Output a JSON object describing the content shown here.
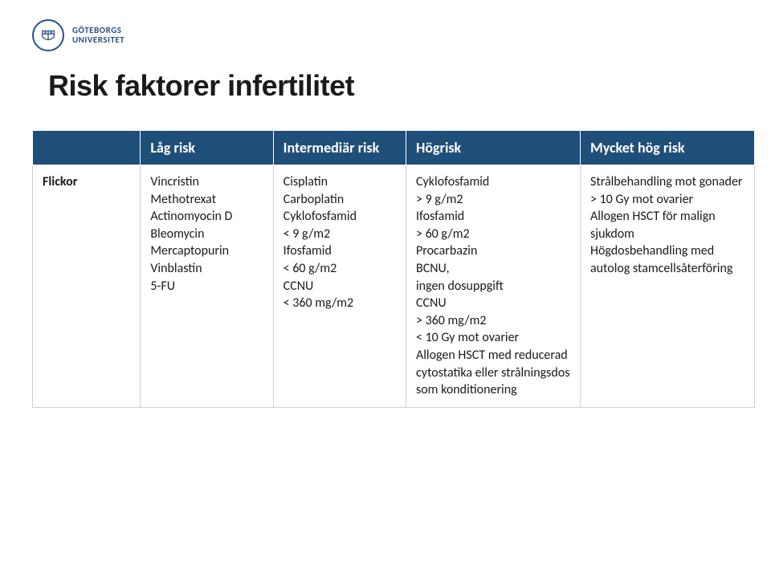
{
  "logo": {
    "line1": "GÖTEBORGS",
    "line2": "UNIVERSITET",
    "stroke": "#2a4e8a"
  },
  "title": "Risk faktorer infertilitet",
  "table": {
    "header_bg": "#1f4e79",
    "header_fg": "#ffffff",
    "cell_border": "#d0d0d0",
    "columns": [
      {
        "label": "",
        "class": "col0"
      },
      {
        "label": "Låg risk",
        "class": "col1"
      },
      {
        "label": "Intermediär risk",
        "class": "col2"
      },
      {
        "label": "Högrisk",
        "class": "col3"
      },
      {
        "label": "Mycket hög risk",
        "class": "col4"
      }
    ],
    "rows": [
      {
        "rowhead": "Flickor",
        "cells": [
          "Vincristin\nMethotrexat\nActinomyocin D\nBleomycin\nMercaptopurin\nVinblastin\n5-FU",
          "Cisplatin\nCarboplatin\nCyklofosfamid\n< 9 g/m2\nIfosfamid\n< 60 g/m2\nCCNU\n< 360 mg/m2",
          "Cyklofosfamid\n> 9 g/m2\nIfosfamid\n> 60 g/m2\nProcarbazin\nBCNU,\ningen dosuppgift\nCCNU\n> 360 mg/m2\n< 10 Gy mot ovarier\nAllogen HSCT med reducerad cytostatika eller strålningsdos som konditionering",
          "Strålbehandling mot gonader\n> 10 Gy mot ovarier\nAllogen HSCT för malign sjukdom\nHögdosbehandling med autolog stamcellsåterföring"
        ]
      }
    ]
  }
}
